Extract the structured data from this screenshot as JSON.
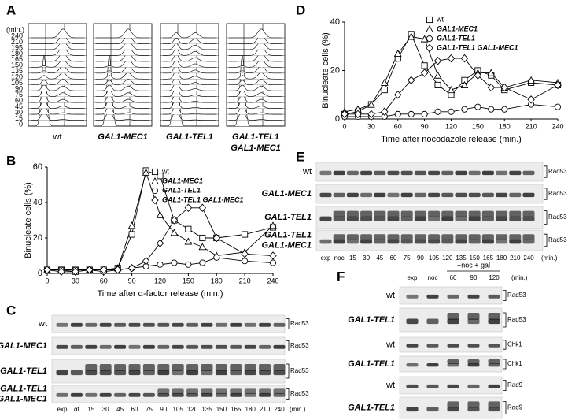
{
  "panel_a": {
    "letter": "A",
    "unit": "(min.)",
    "times": [
      240,
      210,
      195,
      180,
      165,
      150,
      135,
      120,
      105,
      90,
      75,
      60,
      45,
      30,
      15,
      0
    ],
    "labels": [
      [
        "wt"
      ],
      [
        "GAL1-MEC1"
      ],
      [
        "GAL1-TEL1"
      ],
      [
        "GAL1-TEL1",
        "GAL1-MEC1"
      ]
    ]
  },
  "chart_data": [
    {
      "type": "line",
      "letter": "B",
      "xlabel": "Time after α-factor release (min.)",
      "ylabel": "Binucleate cells (%)",
      "x": [
        0,
        15,
        30,
        45,
        60,
        75,
        90,
        105,
        120,
        135,
        150,
        165,
        180,
        210,
        240
      ],
      "xlim": [
        0,
        240
      ],
      "xticks": [
        0,
        30,
        60,
        90,
        120,
        150,
        180,
        210,
        240
      ],
      "ylim": [
        0,
        60
      ],
      "yticks": [
        0,
        20,
        40,
        60
      ],
      "legend": "upper right",
      "series": [
        {
          "name": "wt",
          "color": "#000000",
          "marker": "square",
          "values": [
            2,
            2,
            2,
            2,
            2,
            3,
            22,
            58,
            55,
            30,
            25,
            20,
            20,
            22,
            26
          ]
        },
        {
          "name": "GAL1-MEC1",
          "color": "#000000",
          "marker": "triangle",
          "values": [
            2,
            2,
            1,
            2,
            2,
            3,
            27,
            57,
            33,
            23,
            18,
            15,
            10,
            12,
            27
          ]
        },
        {
          "name": "GAL1-TEL1",
          "color": "#000000",
          "marker": "circle",
          "values": [
            2,
            2,
            2,
            2,
            1,
            2,
            3,
            4,
            5,
            6,
            5,
            6,
            9,
            7,
            6
          ]
        },
        {
          "name": "GAL1-TEL1 GAL1-MEC1",
          "color": "#000000",
          "marker": "diamond",
          "values": [
            2,
            1,
            1,
            2,
            2,
            2,
            3,
            7,
            17,
            30,
            37,
            37,
            20,
            11,
            10
          ]
        }
      ]
    },
    {
      "type": "line",
      "letter": "D",
      "xlabel": "Time after nocodazole release (min.)",
      "ylabel": "Binucleate cells (%)",
      "x": [
        0,
        15,
        30,
        45,
        60,
        75,
        90,
        105,
        120,
        135,
        150,
        165,
        180,
        210,
        240
      ],
      "xlim": [
        0,
        240
      ],
      "xticks": [
        0,
        30,
        60,
        90,
        120,
        150,
        180,
        210,
        240
      ],
      "ylim": [
        0,
        40
      ],
      "yticks": [
        0,
        20,
        40
      ],
      "legend": "upper right",
      "series": [
        {
          "name": "wt",
          "color": "#000000",
          "marker": "square",
          "values": [
            2,
            3,
            6,
            12,
            25,
            35,
            22,
            14,
            10,
            16,
            20,
            18,
            12,
            15,
            14
          ]
        },
        {
          "name": "GAL1-MEC1",
          "color": "#000000",
          "marker": "triangle",
          "values": [
            3,
            4,
            6,
            15,
            27,
            34,
            33,
            18,
            12,
            14,
            19,
            19,
            13,
            16,
            15
          ]
        },
        {
          "name": "GAL1-TEL1",
          "color": "#000000",
          "marker": "circle",
          "values": [
            1,
            1,
            1,
            1,
            2,
            2,
            2,
            3,
            3,
            4,
            5,
            4,
            4,
            6,
            5
          ]
        },
        {
          "name": "GAL1-TEL1 GAL1-MEC1",
          "color": "#000000",
          "marker": "diamond",
          "values": [
            2,
            2,
            2,
            3,
            10,
            16,
            19,
            24,
            25,
            25,
            18,
            13,
            13,
            8,
            14
          ]
        }
      ]
    }
  ],
  "panel_c": {
    "letter": "C",
    "unit": "(min.)",
    "lanes": [
      "exp",
      "αf",
      "15",
      "30",
      "45",
      "60",
      "75",
      "90",
      "105",
      "120",
      "135",
      "150",
      "165",
      "180",
      "210",
      "240"
    ],
    "rows": [
      {
        "label": [
          "wt"
        ],
        "protein": "Rad53"
      },
      {
        "label": [
          "GAL1-MEC1"
        ],
        "protein": "Rad53"
      },
      {
        "label": [
          "GAL1-TEL1"
        ],
        "protein": "Rad53"
      },
      {
        "label": [
          "GAL1-TEL1",
          "GAL1-MEC1"
        ],
        "protein": "Rad53"
      }
    ]
  },
  "panel_e": {
    "letter": "E",
    "unit": "(min.)",
    "lanes": [
      "exp",
      "noc",
      "15",
      "30",
      "45",
      "60",
      "75",
      "90",
      "105",
      "120",
      "135",
      "150",
      "165",
      "180",
      "210",
      "240"
    ],
    "rows": [
      {
        "label": [
          "wt"
        ],
        "protein": "Rad53"
      },
      {
        "label": [
          "GAL1-MEC1"
        ],
        "protein": "Rad53"
      },
      {
        "label": [
          "GAL1-TEL1"
        ],
        "protein": "Rad53"
      },
      {
        "label": [
          "GAL1-TEL1",
          "GAL1-MEC1"
        ],
        "protein": "Rad53"
      }
    ]
  },
  "panel_f": {
    "letter": "F",
    "unit": "(min.)",
    "treatment": "+noc + gal",
    "lanes": [
      "exp",
      "noc",
      "60",
      "90",
      "120"
    ],
    "rows": [
      {
        "label": [
          "wt"
        ],
        "protein": "Rad53"
      },
      {
        "label": [
          "GAL1-TEL1"
        ],
        "protein": "Rad53"
      },
      {
        "label": [
          "wt"
        ],
        "protein": "Chk1"
      },
      {
        "label": [
          "GAL1-TEL1"
        ],
        "protein": "Chk1"
      },
      {
        "label": [
          "wt"
        ],
        "protein": "Rad9"
      },
      {
        "label": [
          "GAL1-TEL1"
        ],
        "protein": "Rad9"
      }
    ]
  }
}
